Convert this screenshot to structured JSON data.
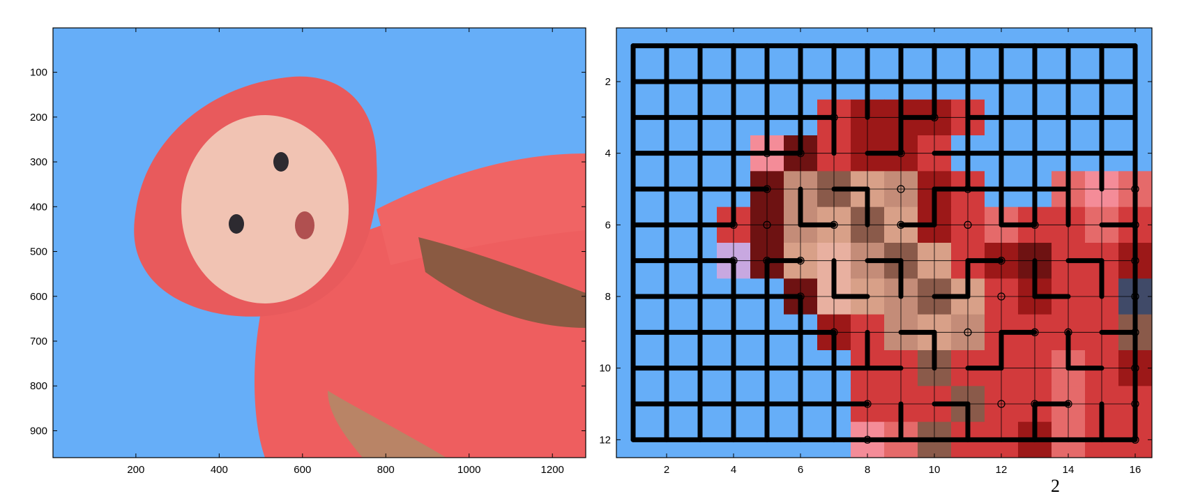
{
  "chart_data": [
    {
      "type": "image",
      "title": "",
      "xlabel": "",
      "ylabel": "",
      "xlim": [
        1,
        1280
      ],
      "ylim": [
        1,
        960
      ],
      "xticks": [
        200,
        400,
        600,
        800,
        1000,
        1200
      ],
      "yticks": [
        100,
        200,
        300,
        400,
        500,
        600,
        700,
        800,
        900
      ],
      "content": "photograph: baby in a coral-red hooded top held by adult hands against a blue background",
      "background_color": "#66aef8",
      "subject_color": "#f25e5f"
    },
    {
      "type": "heatmap",
      "title": "",
      "xlabel": "",
      "ylabel": "",
      "xlim": [
        0.5,
        16.5
      ],
      "ylim": [
        0.5,
        12.5
      ],
      "xticks": [
        2,
        4,
        6,
        8,
        10,
        12,
        14,
        16
      ],
      "yticks": [
        2,
        4,
        6,
        8,
        10,
        12
      ],
      "n_cols": 16,
      "n_rows": 12,
      "background_color": "#66aef8",
      "palette": {
        "B": "#66aef8",
        "b": "#5aa0ee",
        "R": "#d23a3c",
        "r": "#e56a6a",
        "d": "#9c1818",
        "k": "#6e1212",
        "p": "#f48c98",
        "s": "#c48c78",
        "t": "#d8a088",
        "m": "#8a5a4a",
        "w": "#e8b0a0",
        "v": "#c8a8e0",
        "n": "#404a68"
      },
      "grid_rows": [
        "BBBBBBBBBBBBBBBB",
        "BBBBBBBBBBBBBBBB",
        "BBBBBBRdddRBBBBB",
        "BBBBpkRddRBBBBBB",
        "BBBBksmtsdRBBrpr",
        "BBBRkstmtdRrRRrR",
        "BBBvktwsmtRdkRRd",
        "BBBBBkwtsmtRdRRn",
        "BBBBBBdRstsRRRRm",
        "BBBBBBBRRmRRRrRd",
        "BBBBBBBRRRmRRrRR",
        "BBBBBBBprmRRdrRR"
      ],
      "maze_edges": "thick black walls forming a grid maze over blue cells and a spiral path inside the face region",
      "markers": [
        [
          7,
          3
        ],
        [
          10,
          3
        ],
        [
          5,
          4
        ],
        [
          6,
          4
        ],
        [
          9,
          4
        ],
        [
          5,
          5
        ],
        [
          9,
          5
        ],
        [
          11,
          5
        ],
        [
          16,
          5
        ],
        [
          4,
          6
        ],
        [
          5,
          6
        ],
        [
          7,
          6
        ],
        [
          9,
          6
        ],
        [
          11,
          6
        ],
        [
          13,
          6
        ],
        [
          16,
          6
        ],
        [
          4,
          7
        ],
        [
          5,
          7
        ],
        [
          6,
          7
        ],
        [
          12,
          7
        ],
        [
          16,
          7
        ],
        [
          6,
          8
        ],
        [
          12,
          8
        ],
        [
          16,
          8
        ],
        [
          7,
          9
        ],
        [
          11,
          9
        ],
        [
          13,
          9
        ],
        [
          14,
          9
        ],
        [
          16,
          9
        ],
        [
          16,
          10
        ],
        [
          8,
          11
        ],
        [
          12,
          11
        ],
        [
          13,
          11
        ],
        [
          14,
          11
        ],
        [
          16,
          11
        ],
        [
          8,
          12
        ],
        [
          16,
          12
        ]
      ]
    }
  ],
  "extra_text": "2"
}
